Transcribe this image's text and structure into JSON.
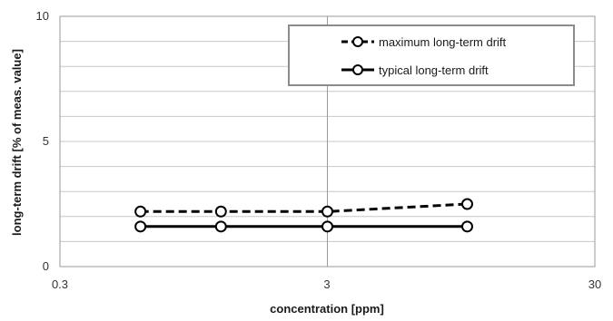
{
  "chart_data": {
    "type": "line",
    "xlabel": "concentration [ppm]",
    "ylabel": "long-term drift [% of meas. value]",
    "x_scale": "log",
    "xlim": [
      0.3,
      30
    ],
    "ylim": [
      0,
      10
    ],
    "x_ticks": [
      "0.3",
      "3",
      "30"
    ],
    "y_ticks": [
      "0",
      "5",
      "10"
    ],
    "grid": true,
    "legend_position": "top-right",
    "x": [
      0.6,
      1.2,
      3,
      10
    ],
    "series": [
      {
        "name": "maximum long-term drift",
        "values": [
          2.2,
          2.2,
          2.2,
          2.5
        ],
        "style": "dashed",
        "color": "#000000"
      },
      {
        "name": "typical long-term drift",
        "values": [
          1.6,
          1.6,
          1.6,
          1.6
        ],
        "style": "solid",
        "color": "#000000"
      }
    ]
  }
}
